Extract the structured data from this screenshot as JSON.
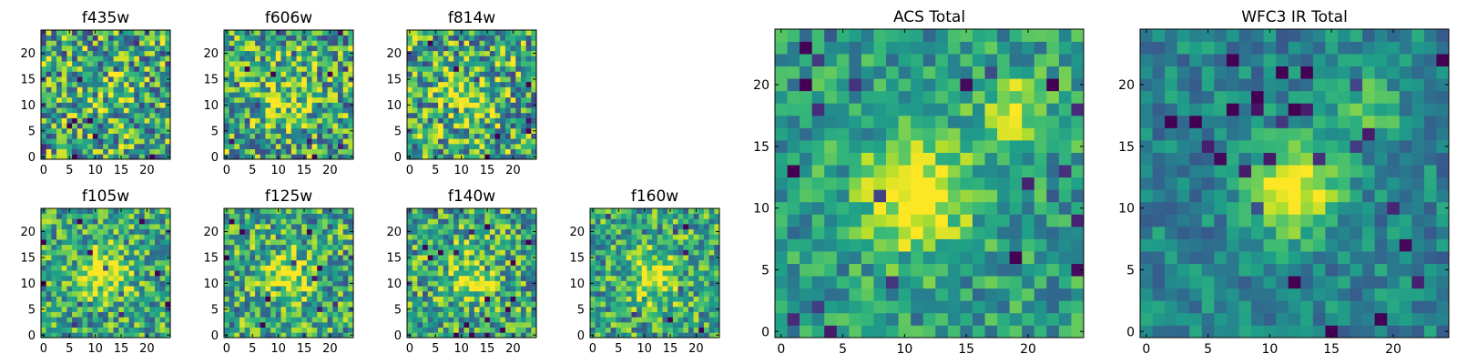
{
  "chart_data": [
    {
      "type": "heatmap",
      "title": "f435w",
      "xlabel": "",
      "ylabel": "",
      "xlim": [
        -0.5,
        24.5
      ],
      "ylim": [
        -0.5,
        24.5
      ],
      "x_ticks": [
        0,
        5,
        10,
        15,
        20
      ],
      "y_ticks": [
        0,
        5,
        10,
        15,
        20
      ],
      "grid": false,
      "colormap": "viridis",
      "grid_size": [
        25,
        25
      ],
      "pattern": {
        "seed": 101,
        "noise": 0.85,
        "blob_amp": 0.1,
        "blob_center": [
          12,
          12
        ],
        "blob_sigma": 4.0
      }
    },
    {
      "type": "heatmap",
      "title": "f606w",
      "xlabel": "",
      "ylabel": "",
      "xlim": [
        -0.5,
        24.5
      ],
      "ylim": [
        -0.5,
        24.5
      ],
      "x_ticks": [
        0,
        5,
        10,
        15,
        20
      ],
      "y_ticks": [
        0,
        5,
        10,
        15,
        20
      ],
      "grid": false,
      "colormap": "viridis",
      "grid_size": [
        25,
        25
      ],
      "pattern": {
        "seed": 202,
        "noise": 0.8,
        "blob_amp": 0.25,
        "blob_center": [
          11,
          11
        ],
        "blob_sigma": 3.5
      }
    },
    {
      "type": "heatmap",
      "title": "f814w",
      "xlabel": "",
      "ylabel": "",
      "xlim": [
        -0.5,
        24.5
      ],
      "ylim": [
        -0.5,
        24.5
      ],
      "x_ticks": [
        0,
        5,
        10,
        15,
        20
      ],
      "y_ticks": [
        0,
        5,
        10,
        15,
        20
      ],
      "grid": false,
      "colormap": "viridis",
      "grid_size": [
        25,
        25
      ],
      "pattern": {
        "seed": 303,
        "noise": 0.8,
        "blob_amp": 0.3,
        "blob_center": [
          12,
          11
        ],
        "blob_sigma": 3.5
      }
    },
    {
      "type": "heatmap",
      "title": "f105w",
      "xlabel": "",
      "ylabel": "",
      "xlim": [
        -0.5,
        24.5
      ],
      "ylim": [
        -0.5,
        24.5
      ],
      "x_ticks": [
        0,
        5,
        10,
        15,
        20
      ],
      "y_ticks": [
        0,
        5,
        10,
        15,
        20
      ],
      "grid": false,
      "colormap": "viridis",
      "grid_size": [
        25,
        25
      ],
      "pattern": {
        "seed": 404,
        "noise": 0.65,
        "blob_amp": 0.45,
        "blob_center": [
          12,
          12
        ],
        "blob_sigma": 3.0
      }
    },
    {
      "type": "heatmap",
      "title": "f125w",
      "xlabel": "",
      "ylabel": "",
      "xlim": [
        -0.5,
        24.5
      ],
      "ylim": [
        -0.5,
        24.5
      ],
      "x_ticks": [
        0,
        5,
        10,
        15,
        20
      ],
      "y_ticks": [
        0,
        5,
        10,
        15,
        20
      ],
      "grid": false,
      "colormap": "viridis",
      "grid_size": [
        25,
        25
      ],
      "pattern": {
        "seed": 505,
        "noise": 0.7,
        "blob_amp": 0.4,
        "blob_center": [
          11,
          11
        ],
        "blob_sigma": 3.0
      }
    },
    {
      "type": "heatmap",
      "title": "f140w",
      "xlabel": "",
      "ylabel": "",
      "xlim": [
        -0.5,
        24.5
      ],
      "ylim": [
        -0.5,
        24.5
      ],
      "x_ticks": [
        0,
        5,
        10,
        15,
        20
      ],
      "y_ticks": [
        0,
        5,
        10,
        15,
        20
      ],
      "grid": false,
      "colormap": "viridis",
      "grid_size": [
        25,
        25
      ],
      "pattern": {
        "seed": 606,
        "noise": 0.7,
        "blob_amp": 0.35,
        "blob_center": [
          12,
          11
        ],
        "blob_sigma": 3.5
      }
    },
    {
      "type": "heatmap",
      "title": "f160w",
      "xlabel": "",
      "ylabel": "",
      "xlim": [
        -0.5,
        24.5
      ],
      "ylim": [
        -0.5,
        24.5
      ],
      "x_ticks": [
        0,
        5,
        10,
        15,
        20
      ],
      "y_ticks": [
        0,
        5,
        10,
        15,
        20
      ],
      "grid": false,
      "colormap": "viridis",
      "grid_size": [
        25,
        25
      ],
      "pattern": {
        "seed": 707,
        "noise": 0.65,
        "blob_amp": 0.45,
        "blob_center": [
          12,
          11
        ],
        "blob_sigma": 3.0
      }
    },
    {
      "type": "heatmap",
      "title": "ACS Total",
      "xlabel": "",
      "ylabel": "",
      "xlim": [
        -0.5,
        24.5
      ],
      "ylim": [
        -0.5,
        24.5
      ],
      "x_ticks": [
        0,
        5,
        10,
        15,
        20
      ],
      "y_ticks": [
        0,
        5,
        10,
        15,
        20
      ],
      "grid": false,
      "colormap": "viridis",
      "grid_size": [
        25,
        25
      ],
      "pattern": {
        "seed": 808,
        "noise": 0.45,
        "blob_amp": 0.55,
        "blob_center": [
          11,
          11
        ],
        "blob_sigma": 3.0,
        "blob2_amp": 0.4,
        "blob2_center": [
          19,
          18
        ],
        "blob2_sigma": 2.0,
        "base": 0.55
      }
    },
    {
      "type": "heatmap",
      "title": "WFC3 IR Total",
      "xlabel": "",
      "ylabel": "",
      "xlim": [
        -0.5,
        24.5
      ],
      "ylim": [
        -0.5,
        24.5
      ],
      "x_ticks": [
        0,
        5,
        10,
        15,
        20
      ],
      "y_ticks": [
        0,
        5,
        10,
        15,
        20
      ],
      "grid": false,
      "colormap": "viridis",
      "grid_size": [
        25,
        25
      ],
      "pattern": {
        "seed": 909,
        "noise": 0.35,
        "blob_amp": 0.6,
        "blob_center": [
          12,
          11.5
        ],
        "blob_sigma": 2.5,
        "blob2_amp": 0.3,
        "blob2_center": [
          18,
          18
        ],
        "blob2_sigma": 1.8,
        "base": 0.45
      }
    }
  ]
}
